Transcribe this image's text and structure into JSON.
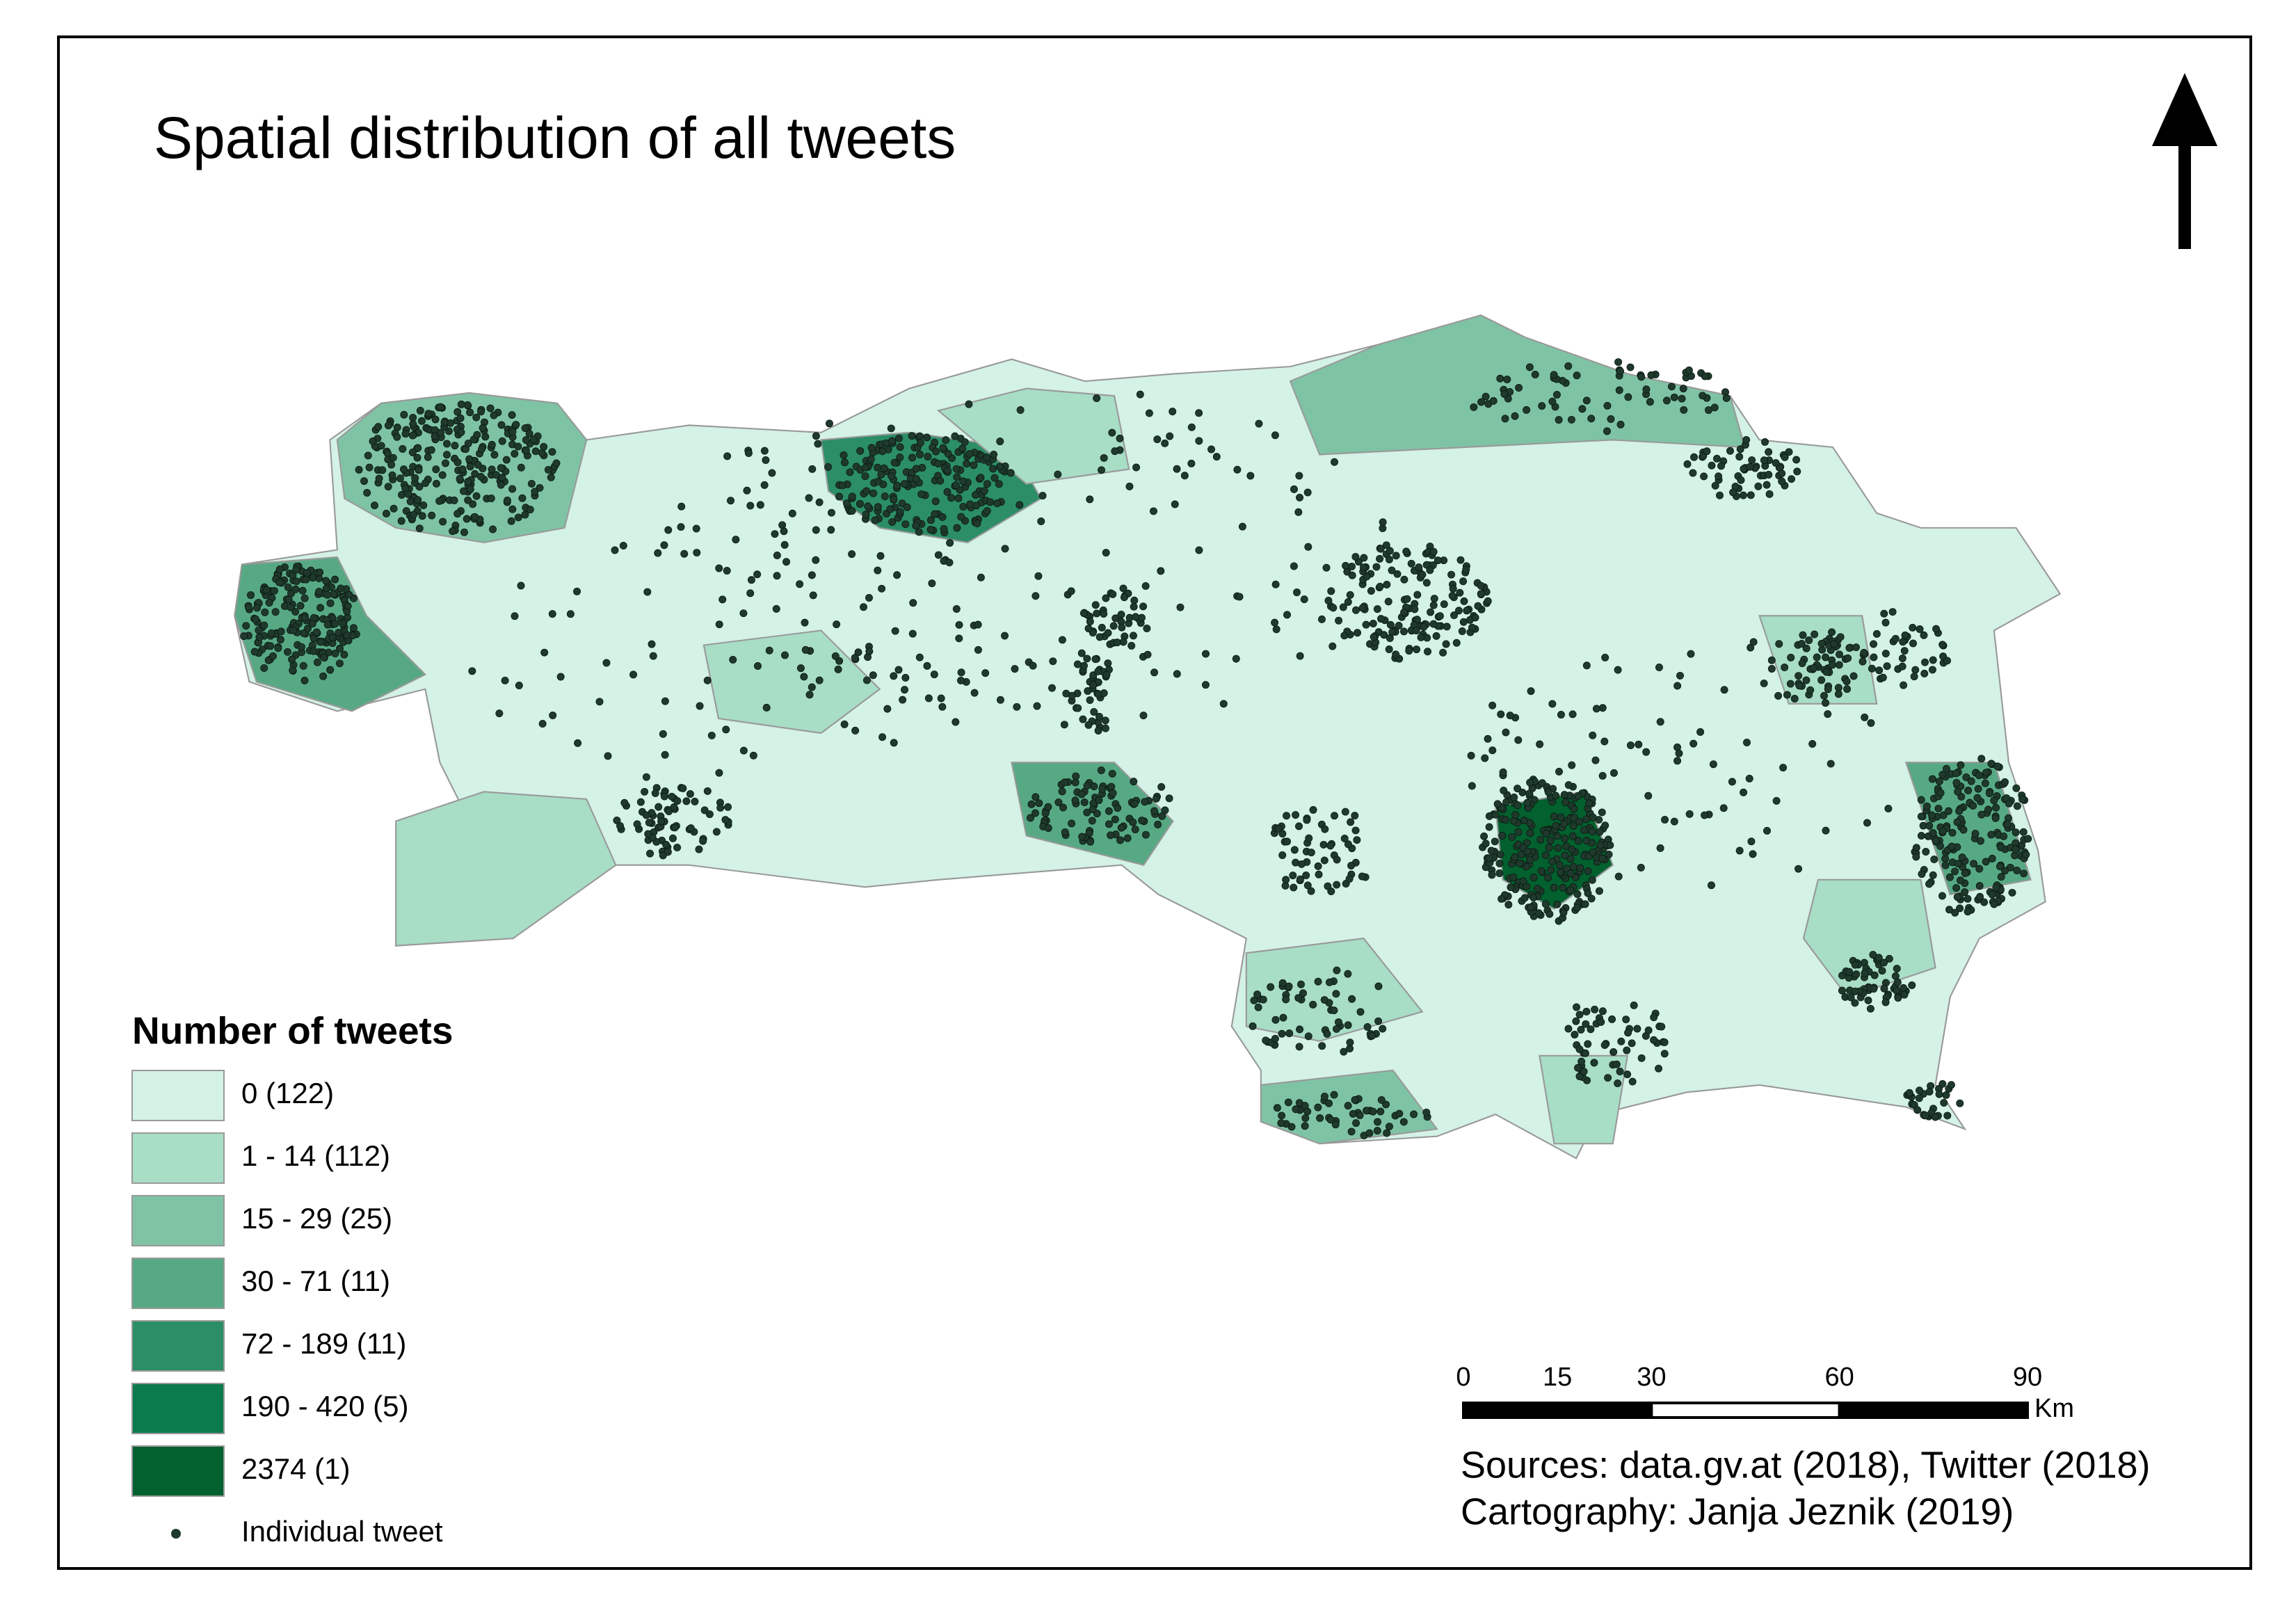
{
  "title": "Spatial distribution of all tweets",
  "legend": {
    "title": "Number of tweets",
    "items": [
      {
        "label": "0 (122)",
        "color": "#d4f2e6"
      },
      {
        "label": "1 - 14 (112)",
        "color": "#a8ddc6"
      },
      {
        "label": "15 - 29 (25)",
        "color": "#7fc3a5"
      },
      {
        "label": "30 - 71 (11)",
        "color": "#57a984"
      },
      {
        "label": "72 - 189 (11)",
        "color": "#2b8e66"
      },
      {
        "label": "190 - 420 (5)",
        "color": "#0b7b4b"
      },
      {
        "label": "2374 (1)",
        "color": "#02612e"
      }
    ],
    "point_label": "Individual tweet"
  },
  "scale_bar": {
    "ticks": [
      0,
      15,
      30,
      60,
      90
    ],
    "unit": "Km"
  },
  "credits": {
    "sources": "Sources: data.gv.at (2018), Twitter (2018)",
    "cartography": "Cartography: Janja Jeznik (2019)"
  }
}
